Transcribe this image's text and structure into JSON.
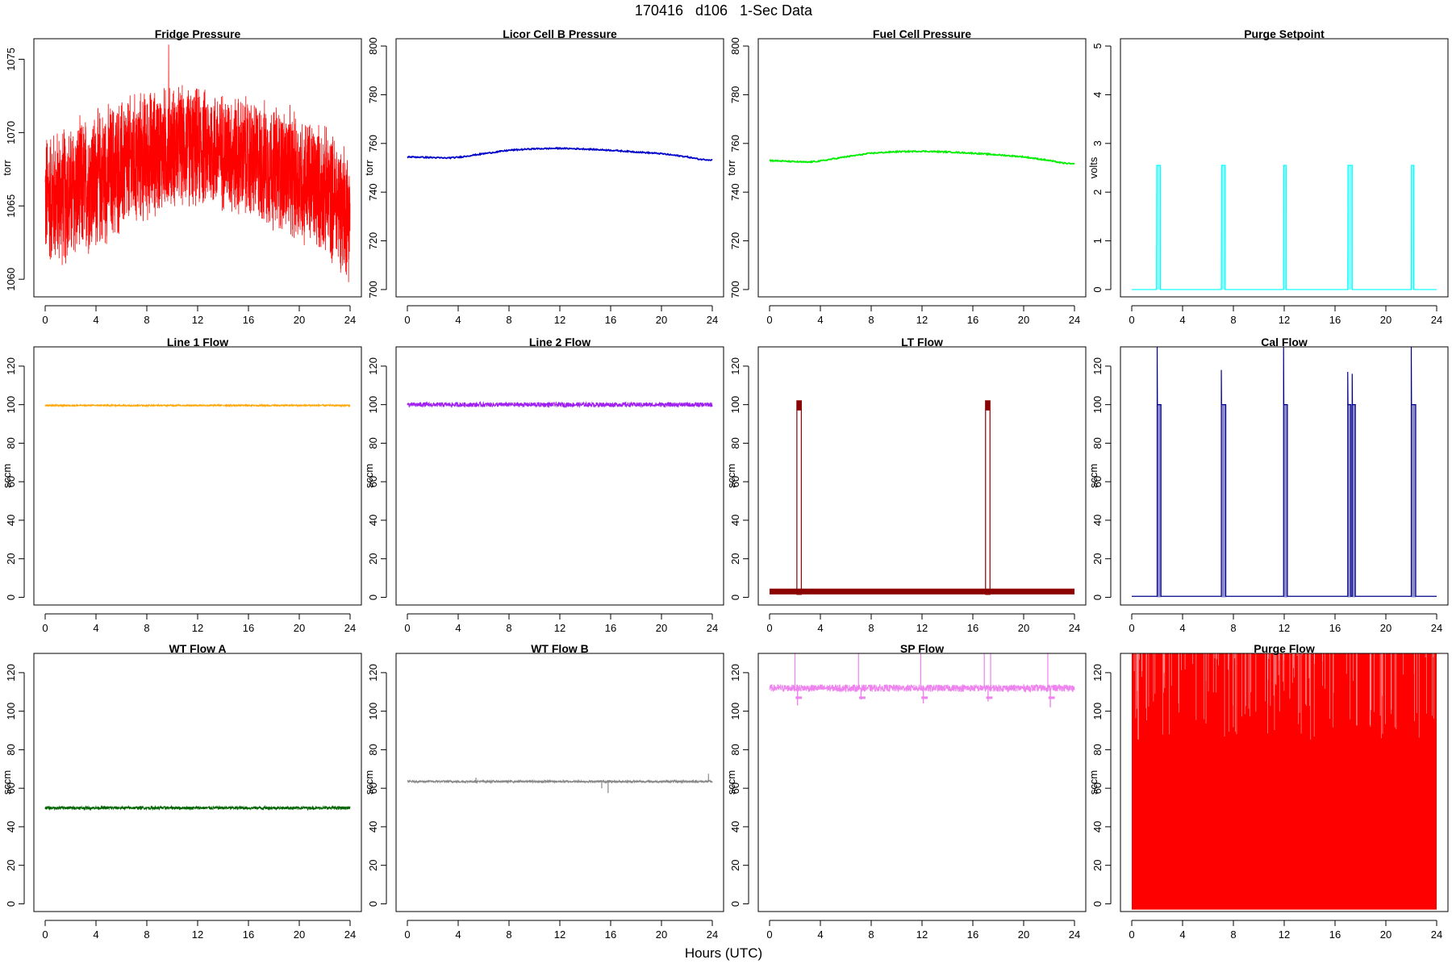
{
  "figure": {
    "title": "170416   d106   1-Sec Data",
    "xlabel": "Hours (UTC)"
  },
  "chart_data": [
    {
      "type": "line",
      "style": "noise",
      "title": "Fridge Pressure",
      "ylabel": "torr",
      "color": "#ff0000",
      "xlim": [
        0,
        24
      ],
      "xticks": [
        0,
        4,
        8,
        12,
        16,
        20,
        24
      ],
      "ylim": [
        1058.8,
        1076.4
      ],
      "yticks": [
        1060,
        1065,
        1070,
        1075
      ],
      "x": [
        0,
        2,
        4,
        6,
        8,
        10,
        12,
        14,
        16,
        18,
        20,
        22,
        24
      ],
      "y_low": [
        1060.5,
        1060.5,
        1061.5,
        1062.5,
        1063.5,
        1064.5,
        1064.5,
        1064.3,
        1063.5,
        1063,
        1062,
        1061.3,
        1059.5
      ],
      "y_high": [
        1070.5,
        1071,
        1072,
        1072.8,
        1073.3,
        1073.6,
        1073.5,
        1073.2,
        1072.8,
        1072.4,
        1071.8,
        1070.8,
        1069.5
      ],
      "max_spike": 1076
    },
    {
      "type": "line",
      "style": "line",
      "title": "Licor Cell B Pressure",
      "ylabel": "torr",
      "color": "#0000cc",
      "xlim": [
        0,
        24
      ],
      "xticks": [
        0,
        4,
        8,
        12,
        16,
        20,
        24
      ],
      "ylim": [
        697,
        803
      ],
      "yticks": [
        700,
        720,
        740,
        760,
        780,
        800
      ],
      "x": [
        0,
        2,
        3,
        4,
        6,
        8,
        10,
        12,
        14,
        16,
        18,
        20,
        22,
        23,
        24
      ],
      "y": [
        754.5,
        754.2,
        754,
        754.3,
        755.8,
        757.2,
        757.8,
        758,
        757.7,
        757.2,
        756.5,
        755.8,
        754.5,
        753.5,
        753.2
      ]
    },
    {
      "type": "line",
      "style": "line",
      "title": "Fuel Cell Pressure",
      "ylabel": "torr",
      "color": "#00ee00",
      "xlim": [
        0,
        24
      ],
      "xticks": [
        0,
        4,
        8,
        12,
        16,
        20,
        24
      ],
      "ylim": [
        697,
        803
      ],
      "yticks": [
        700,
        720,
        740,
        760,
        780,
        800
      ],
      "x": [
        0,
        2,
        3,
        4,
        6,
        8,
        10,
        12,
        14,
        16,
        18,
        20,
        22,
        23,
        24
      ],
      "y": [
        753,
        752.5,
        752.3,
        752.8,
        754.5,
        756,
        756.6,
        756.8,
        756.5,
        756,
        755.3,
        754.5,
        753,
        752,
        751.5
      ]
    },
    {
      "type": "line",
      "style": "pulse",
      "title": "Purge Setpoint",
      "ylabel": "volts",
      "color": "#00ffff",
      "xlim": [
        0,
        24
      ],
      "xticks": [
        0,
        4,
        8,
        12,
        16,
        20,
        24
      ],
      "ylim": [
        -0.15,
        5.15
      ],
      "yticks": [
        0,
        1,
        2,
        3,
        4,
        5
      ],
      "base": 0,
      "pulses": [
        {
          "start": 1.95,
          "end": 2.25,
          "value": 2.55
        },
        {
          "start": 7.05,
          "end": 7.35,
          "value": 2.55
        },
        {
          "start": 11.95,
          "end": 12.15,
          "value": 2.55
        },
        {
          "start": 17.0,
          "end": 17.35,
          "value": 2.55
        },
        {
          "start": 22.0,
          "end": 22.2,
          "value": 2.55
        }
      ]
    },
    {
      "type": "line",
      "style": "band",
      "title": "Line 1 Flow",
      "ylabel": "sccm",
      "color": "#ffa500",
      "xlim": [
        0,
        24
      ],
      "xticks": [
        0,
        4,
        8,
        12,
        16,
        20,
        24
      ],
      "ylim": [
        -4,
        130
      ],
      "yticks": [
        0,
        20,
        40,
        60,
        80,
        100,
        120
      ],
      "center": 99.6,
      "halfwidth": 0.4
    },
    {
      "type": "line",
      "style": "band",
      "title": "Line 2 Flow",
      "ylabel": "sccm",
      "color": "#a020f0",
      "xlim": [
        0,
        24
      ],
      "xticks": [
        0,
        4,
        8,
        12,
        16,
        20,
        24
      ],
      "ylim": [
        -4,
        130
      ],
      "yticks": [
        0,
        20,
        40,
        60,
        80,
        100,
        120
      ],
      "center": 100,
      "halfwidth": 1.2
    },
    {
      "type": "line",
      "style": "pulse",
      "title": "LT Flow",
      "ylabel": "sccm",
      "color": "#8b0000",
      "xlim": [
        0,
        24
      ],
      "xticks": [
        0,
        4,
        8,
        12,
        16,
        20,
        24
      ],
      "ylim": [
        -4,
        130
      ],
      "yticks": [
        0,
        20,
        40,
        60,
        80,
        100,
        120
      ],
      "base": 1.5,
      "base_high": 4.5,
      "filled": true,
      "pulses": [
        {
          "start": 2.15,
          "end": 2.5,
          "value": 102
        },
        {
          "start": 17.0,
          "end": 17.35,
          "value": 102
        }
      ]
    },
    {
      "type": "line",
      "style": "pulse",
      "title": "Cal Flow",
      "ylabel": "sccm",
      "color": "#00008b",
      "xlim": [
        0,
        24
      ],
      "xticks": [
        0,
        4,
        8,
        12,
        16,
        20,
        24
      ],
      "ylim": [
        -4,
        130
      ],
      "yticks": [
        0,
        20,
        40,
        60,
        80,
        100,
        120
      ],
      "base": 0.5,
      "pulses": [
        {
          "start": 2.0,
          "end": 2.3,
          "value": 100,
          "spike": 130
        },
        {
          "start": 7.05,
          "end": 7.4,
          "value": 100,
          "spike": 118
        },
        {
          "start": 11.95,
          "end": 12.25,
          "value": 100,
          "spike": 130
        },
        {
          "start": 17.0,
          "end": 17.25,
          "value": 100,
          "spike": 117
        },
        {
          "start": 17.35,
          "end": 17.6,
          "value": 100,
          "spike": 116
        },
        {
          "start": 22.0,
          "end": 22.35,
          "value": 100,
          "spike": 130
        }
      ]
    },
    {
      "type": "line",
      "style": "band",
      "title": "WT Flow A",
      "ylabel": "sccm",
      "color": "#006400",
      "xlim": [
        0,
        24
      ],
      "xticks": [
        0,
        4,
        8,
        12,
        16,
        20,
        24
      ],
      "ylim": [
        -4,
        130
      ],
      "yticks": [
        0,
        20,
        40,
        60,
        80,
        100,
        120
      ],
      "center": 49.8,
      "halfwidth": 0.8
    },
    {
      "type": "line",
      "style": "band",
      "title": "WT Flow B",
      "ylabel": "sccm",
      "color": "#888888",
      "xlim": [
        0,
        24
      ],
      "xticks": [
        0,
        4,
        8,
        12,
        16,
        20,
        24
      ],
      "ylim": [
        -4,
        130
      ],
      "yticks": [
        0,
        20,
        40,
        60,
        80,
        100,
        120
      ],
      "center": 63.5,
      "halfwidth": 0.6,
      "spikes": [
        {
          "x": 15.8,
          "y": 57.5
        },
        {
          "x": 15.3,
          "y": 60
        },
        {
          "x": 23.7,
          "y": 67.5
        },
        {
          "x": 5.4,
          "y": 65.5
        }
      ]
    },
    {
      "type": "line",
      "style": "band",
      "title": "SP Flow",
      "ylabel": "sccm",
      "color": "#ee82ee",
      "xlim": [
        0,
        24
      ],
      "xticks": [
        0,
        4,
        8,
        12,
        16,
        20,
        24
      ],
      "ylim": [
        -4,
        130
      ],
      "yticks": [
        0,
        20,
        40,
        60,
        80,
        100,
        120
      ],
      "center": 112,
      "halfwidth": 1.8,
      "dips": [
        {
          "x": 2.2,
          "y": 103
        },
        {
          "x": 7.2,
          "y": 106
        },
        {
          "x": 12.1,
          "y": 104
        },
        {
          "x": 17.2,
          "y": 105
        },
        {
          "x": 22.1,
          "y": 102
        }
      ],
      "spikes": [
        {
          "x": 2.0,
          "y": 130
        },
        {
          "x": 7.0,
          "y": 130
        },
        {
          "x": 11.9,
          "y": 130
        },
        {
          "x": 16.9,
          "y": 130
        },
        {
          "x": 17.4,
          "y": 130
        },
        {
          "x": 21.9,
          "y": 130
        }
      ]
    },
    {
      "type": "line",
      "style": "fill",
      "title": "Purge Flow",
      "ylabel": "sccm",
      "color": "#ff0000",
      "xlim": [
        0,
        24
      ],
      "xticks": [
        0,
        4,
        8,
        12,
        16,
        20,
        24
      ],
      "ylim": [
        -4,
        130
      ],
      "yticks": [
        0,
        20,
        40,
        60,
        80,
        100,
        120
      ],
      "fill_low": -3,
      "fill_high": 130
    }
  ]
}
